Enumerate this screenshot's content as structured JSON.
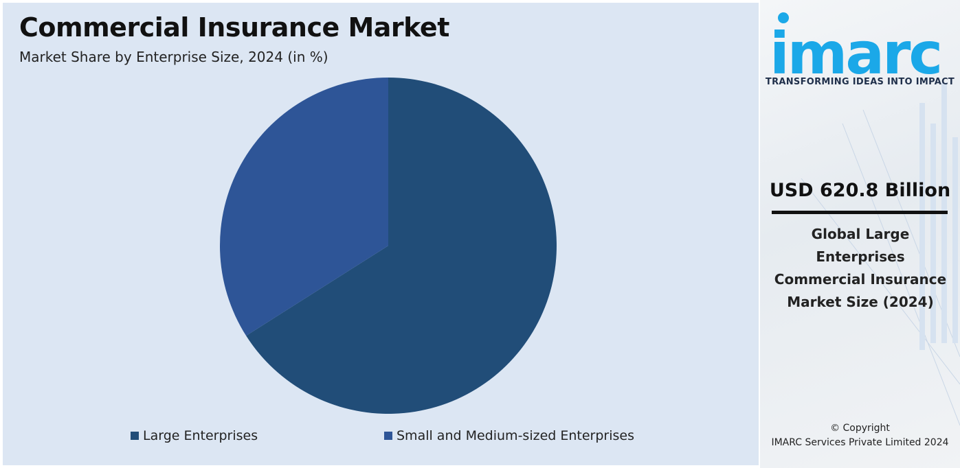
{
  "chart_data": {
    "type": "pie",
    "title": "Commercial Insurance Market",
    "subtitle": "Market Share by Enterprise Size, 2024 (in %)",
    "categories": [
      "Large Enterprises",
      "Small and Medium-sized Enterprises"
    ],
    "values": [
      66,
      34
    ],
    "colors": [
      "#214d78",
      "#2e5597"
    ],
    "start_angle": "12 o'clock",
    "direction": "clockwise",
    "legend_position": "bottom"
  },
  "sidebar": {
    "logo_text": "imarc",
    "tagline": "TRANSFORMING IDEAS INTO IMPACT",
    "value": "USD 620.8 Billion",
    "description": "Global Large Enterprises Commercial Insurance Market Size (2024)",
    "copyright_line1": "© Copyright",
    "copyright_line2": "IMARC Services Private Limited 2024",
    "accent_color": "#1ba8e8"
  }
}
